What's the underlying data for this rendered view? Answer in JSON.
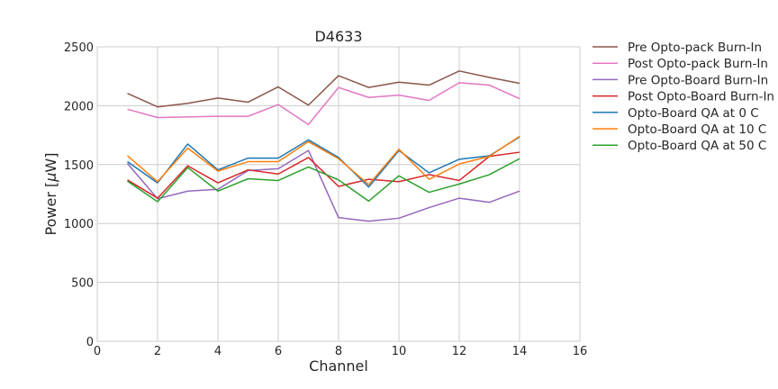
{
  "chart_data": {
    "type": "line",
    "title": "D4633",
    "xlabel": "Channel",
    "ylabel_prefix": "Power [",
    "ylabel_mu": "μ",
    "ylabel_suffix": "W]",
    "xlim": [
      0,
      16
    ],
    "ylim": [
      0,
      2500
    ],
    "xticks": [
      0,
      2,
      4,
      6,
      8,
      10,
      12,
      14,
      16
    ],
    "yticks": [
      0,
      500,
      1000,
      1500,
      2000,
      2500
    ],
    "grid": true,
    "legend_position": "outside-right",
    "x": [
      1,
      2,
      3,
      4,
      5,
      6,
      7,
      8,
      9,
      10,
      11,
      12,
      13,
      14
    ],
    "series": [
      {
        "name": "Pre Opto-pack Burn-In",
        "color": "#8c564b",
        "values": [
          2105,
          1990,
          2020,
          2065,
          2030,
          2160,
          2005,
          2255,
          2155,
          2200,
          2175,
          2295,
          2240,
          2190
        ]
      },
      {
        "name": "Post Opto-pack Burn-In",
        "color": "#e377c2",
        "values": [
          1970,
          1900,
          1905,
          1910,
          1910,
          2010,
          1840,
          2155,
          2070,
          2090,
          2045,
          2195,
          2175,
          2060
        ]
      },
      {
        "name": "Pre Opto-Board Burn-In",
        "color": "#9467bd",
        "values": [
          1510,
          1210,
          1275,
          1290,
          1450,
          1465,
          1620,
          1050,
          1020,
          1045,
          1135,
          1215,
          1180,
          1275
        ]
      },
      {
        "name": "Post Opto-Board Burn-In",
        "color": "#d62728",
        "values": [
          1370,
          1215,
          1490,
          1345,
          1455,
          1420,
          1560,
          1315,
          1375,
          1355,
          1415,
          1365,
          1570,
          1605
        ]
      },
      {
        "name": "Opto-Board QA at 0 C",
        "color": "#1f77b4",
        "values": [
          1525,
          1345,
          1675,
          1455,
          1555,
          1555,
          1710,
          1560,
          1310,
          1620,
          1430,
          1545,
          1575,
          1735
        ]
      },
      {
        "name": "Opto-Board QA at 10 C",
        "color": "#ff7f0e",
        "values": [
          1575,
          1355,
          1640,
          1445,
          1525,
          1525,
          1695,
          1550,
          1330,
          1630,
          1375,
          1505,
          1570,
          1740
        ]
      },
      {
        "name": "Opto-Board QA at 50 C",
        "color": "#2ca02c",
        "values": [
          1360,
          1185,
          1475,
          1275,
          1380,
          1365,
          1480,
          1370,
          1190,
          1405,
          1265,
          1335,
          1415,
          1550
        ]
      }
    ]
  }
}
